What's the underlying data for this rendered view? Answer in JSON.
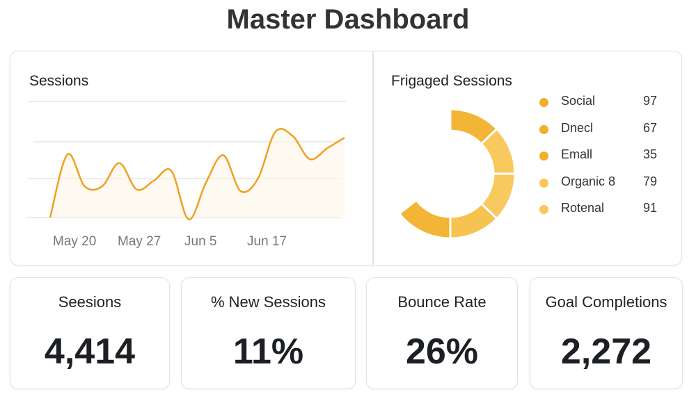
{
  "header": {
    "title": "Master Dashboard"
  },
  "chart_data": [
    {
      "type": "line",
      "title": "Sessions",
      "x_tick_labels": [
        "May 20",
        "May 27",
        "Jun 5",
        "Jun 17"
      ],
      "values": [
        0,
        1.62,
        0.8,
        0.8,
        1.4,
        0.72,
        0.95,
        1.2,
        -0.05,
        0.9,
        1.6,
        0.68,
        1.0,
        2.2,
        2.1,
        1.5,
        1.78,
        2.05
      ],
      "ylim": [
        0,
        3
      ],
      "grid": true,
      "color": "#F0A020"
    },
    {
      "type": "pie",
      "title": "Frigaged Sessions",
      "legend_position": "right",
      "categories": [
        "Social",
        "Dnecl",
        "Emall",
        "Organic 8",
        "Rotenal"
      ],
      "values": [
        97,
        67,
        35,
        79,
        91
      ],
      "colors": [
        "#F0AE2C",
        "#F0AE2C",
        "#F0AE2C",
        "#F8C758",
        "#F8C758"
      ],
      "segment_colors": [
        "#F2B535",
        "#F8C95E",
        "#F8C95E",
        "#F7C350",
        "#F2B535"
      ]
    }
  ],
  "kpis": [
    {
      "label": "Seesions",
      "value": "4,414"
    },
    {
      "label": "% New Sessions",
      "value": "11%"
    },
    {
      "label": "Bounce Rate",
      "value": "26%"
    },
    {
      "label": "Goal Completions",
      "value": "2,272"
    }
  ]
}
